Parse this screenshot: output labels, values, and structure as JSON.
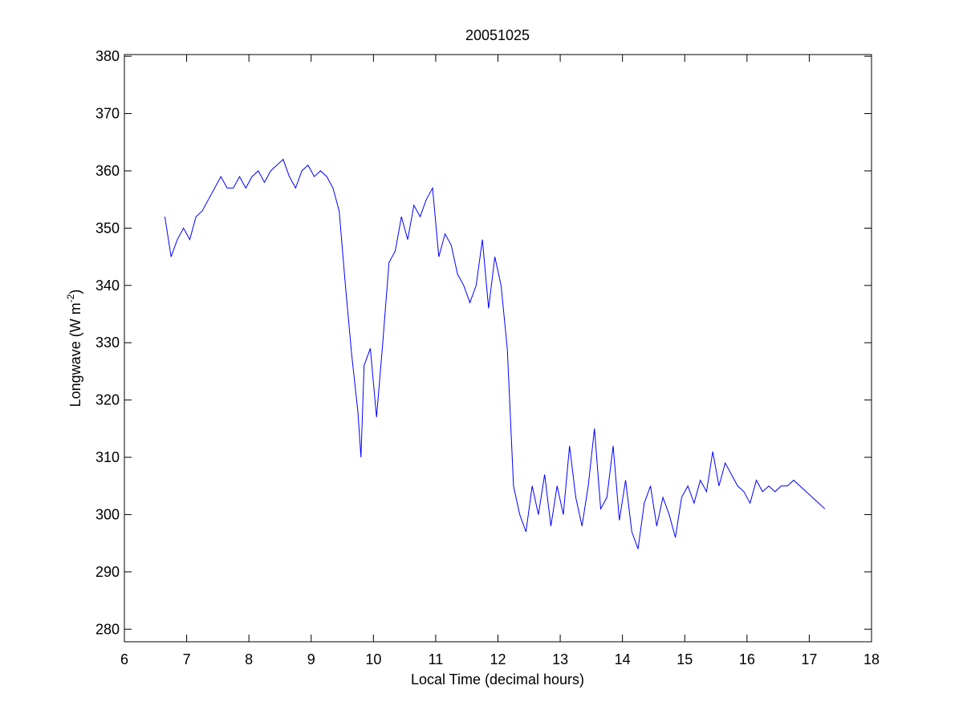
{
  "chart_data": {
    "type": "line",
    "title": "20051025",
    "xlabel": "Local Time (decimal hours)",
    "ylabel": {
      "main": "Longwave (W m",
      "sup": "-2",
      "end": ")"
    },
    "x": [
      6.65,
      6.75,
      6.85,
      6.95,
      7.05,
      7.15,
      7.25,
      7.35,
      7.45,
      7.55,
      7.65,
      7.75,
      7.85,
      7.95,
      8.05,
      8.15,
      8.25,
      8.35,
      8.45,
      8.55,
      8.65,
      8.75,
      8.85,
      8.95,
      9.05,
      9.15,
      9.25,
      9.35,
      9.45,
      9.55,
      9.65,
      9.75,
      9.8,
      9.85,
      9.95,
      10.05,
      10.15,
      10.25,
      10.35,
      10.45,
      10.55,
      10.65,
      10.75,
      10.85,
      10.95,
      11.05,
      11.15,
      11.25,
      11.35,
      11.45,
      11.55,
      11.65,
      11.75,
      11.85,
      11.95,
      12.05,
      12.15,
      12.25,
      12.35,
      12.45,
      12.55,
      12.65,
      12.75,
      12.85,
      12.95,
      13.05,
      13.15,
      13.25,
      13.35,
      13.45,
      13.55,
      13.65,
      13.75,
      13.85,
      13.95,
      14.05,
      14.15,
      14.25,
      14.35,
      14.45,
      14.55,
      14.65,
      14.75,
      14.85,
      14.95,
      15.05,
      15.15,
      15.25,
      15.35,
      15.45,
      15.55,
      15.65,
      15.75,
      15.85,
      15.95,
      16.05,
      16.15,
      16.25,
      16.35,
      16.45,
      16.55,
      16.65,
      16.75,
      16.85,
      16.95,
      17.05,
      17.15,
      17.25
    ],
    "series": [
      {
        "color": "#0000ff",
        "values": [
          352,
          345,
          348,
          350,
          348,
          352,
          353,
          355,
          357,
          359,
          357,
          357,
          359,
          357,
          359,
          360,
          358,
          360,
          361,
          362,
          359,
          357,
          360,
          361,
          359,
          360,
          359,
          357,
          353,
          340,
          328,
          318,
          310,
          326,
          329,
          317,
          330,
          344,
          346,
          352,
          348,
          354,
          352,
          355,
          357,
          345,
          349,
          347,
          342,
          340,
          337,
          340,
          348,
          336,
          345,
          340,
          329,
          305,
          300,
          297,
          305,
          300,
          307,
          298,
          305,
          300,
          312,
          303,
          298,
          305,
          315,
          301,
          303,
          312,
          299,
          306,
          297,
          294,
          302,
          305,
          298,
          303,
          300,
          296,
          303,
          305,
          302,
          306,
          304,
          311,
          305,
          309,
          307,
          305,
          304,
          302,
          306,
          304,
          305,
          304,
          305,
          305,
          306,
          305,
          304,
          303,
          302,
          301
        ]
      }
    ],
    "xlim": [
      6,
      18
    ],
    "xticks": [
      6,
      7,
      8,
      9,
      10,
      11,
      12,
      13,
      14,
      15,
      16,
      17,
      18
    ],
    "ylim": [
      277.8,
      380.3
    ],
    "yticks": [
      280,
      290,
      300,
      310,
      320,
      330,
      340,
      350,
      360,
      370,
      380
    ]
  }
}
